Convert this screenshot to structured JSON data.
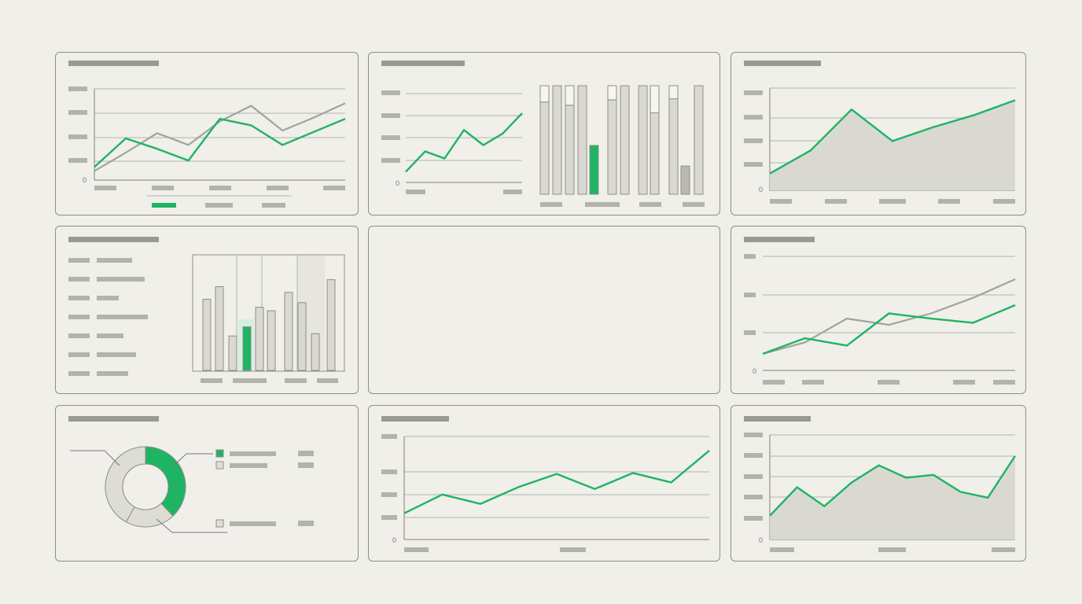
{
  "colors": {
    "accent": "#1eb464",
    "neutral": "#a3a39d",
    "fill": "#d9d9d2",
    "background": "#f0efe9"
  },
  "chart_data": [
    {
      "type": "line",
      "zero_label": "0",
      "series": [
        {
          "color": "accent",
          "values": [
            10,
            32,
            24,
            15,
            47,
            42,
            27,
            37,
            47
          ]
        },
        {
          "color": "neutral",
          "values": [
            7,
            21,
            36,
            27,
            45,
            57,
            38,
            48,
            59
          ]
        }
      ]
    },
    {
      "type": "line",
      "zero_label": "0",
      "series": [
        {
          "color": "accent",
          "values": [
            12,
            35,
            27,
            59,
            42,
            55,
            78
          ]
        }
      ]
    },
    {
      "type": "bar",
      "stacked": true,
      "values": [
        [
          85,
          15
        ],
        [
          100,
          0
        ],
        [
          82,
          18
        ],
        [
          100,
          0
        ],
        [
          45,
          0
        ],
        [
          87,
          13
        ],
        [
          100,
          0
        ],
        [
          100,
          0
        ],
        [
          75,
          25
        ],
        [
          88,
          12
        ],
        [
          26,
          0
        ],
        [
          100,
          0
        ]
      ],
      "highlight": [
        4
      ]
    },
    {
      "type": "area",
      "zero_label": "0",
      "series": [
        {
          "color": "accent",
          "values": [
            18,
            43,
            87,
            53,
            68,
            81,
            97
          ]
        }
      ]
    },
    {
      "type": "bar",
      "values": [
        62,
        73,
        30,
        38,
        55,
        52,
        68,
        59,
        32,
        79
      ],
      "highlight": [
        3
      ]
    },
    {
      "type": "line",
      "zero_label": "0",
      "series": [
        {
          "color": "accent",
          "values": [
            16,
            31,
            24,
            55,
            50,
            46,
            63
          ]
        },
        {
          "color": "neutral",
          "values": [
            16,
            27,
            50,
            44,
            55,
            70,
            88
          ]
        }
      ]
    },
    {
      "type": "pie",
      "donut": true,
      "values": [
        38,
        20,
        42
      ],
      "highlight": [
        0
      ]
    },
    {
      "type": "line",
      "zero_label": "0",
      "series": [
        {
          "color": "accent",
          "values": [
            28,
            48,
            38,
            56,
            70,
            54,
            71,
            61,
            95
          ]
        }
      ]
    },
    {
      "type": "area",
      "zero_label": "0",
      "series": [
        {
          "color": "accent",
          "values": [
            25,
            55,
            35,
            60,
            78,
            65,
            68,
            50,
            44,
            88
          ]
        }
      ]
    }
  ]
}
